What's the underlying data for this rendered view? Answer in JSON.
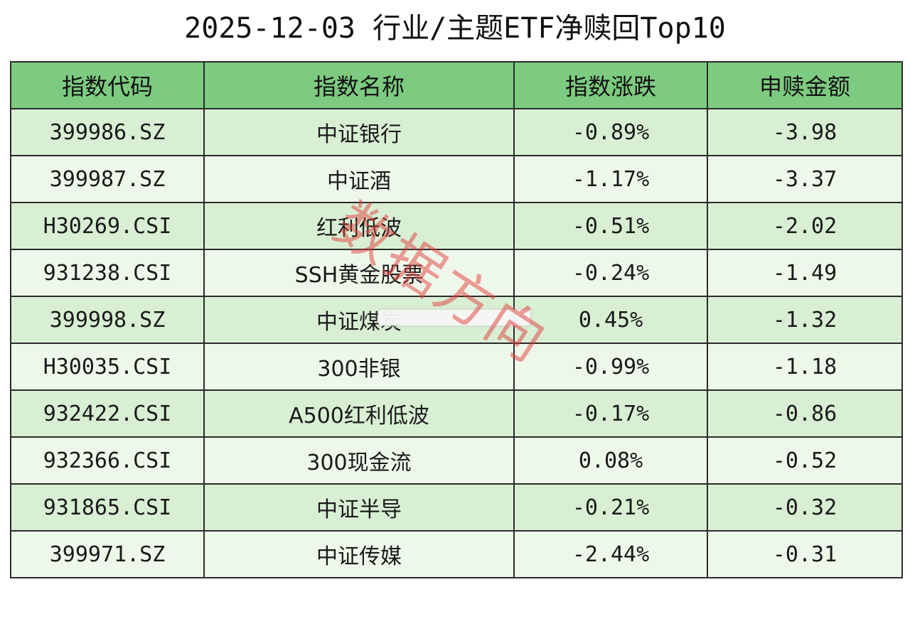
{
  "title": "2025-12-03 行业/主题ETF净赎回Top10",
  "headers": [
    "指数代码",
    "指数名称",
    "指数涨跌",
    "申赎金额"
  ],
  "rows": [
    {
      "code": "399986.SZ",
      "name": "中证银行",
      "change": "-0.89%",
      "amount": "-3.98"
    },
    {
      "code": "399987.SZ",
      "name": "中证酒",
      "change": "-1.17%",
      "amount": "-3.37"
    },
    {
      "code": "H30269.CSI",
      "name": "红利低波",
      "change": "-0.51%",
      "amount": "-2.02"
    },
    {
      "code": "931238.CSI",
      "name": "SSH黄金股票",
      "change": "-0.24%",
      "amount": "-1.49"
    },
    {
      "code": "399998.SZ",
      "name": "中证煤炭",
      "change": "0.45%",
      "amount": "-1.32"
    },
    {
      "code": "H30035.CSI",
      "name": "300非银",
      "change": "-0.99%",
      "amount": "-1.18"
    },
    {
      "code": "932422.CSI",
      "name": "A500红利低波",
      "change": "-0.17%",
      "amount": "-0.86"
    },
    {
      "code": "932366.CSI",
      "name": "300现金流",
      "change": "0.08%",
      "amount": "-0.52"
    },
    {
      "code": "931865.CSI",
      "name": "中证半导",
      "change": "-0.21%",
      "amount": "-0.32"
    },
    {
      "code": "399971.SZ",
      "name": "中证传媒",
      "change": "-2.44%",
      "amount": "-0.31"
    }
  ],
  "watermark": "数据方向",
  "colors": {
    "header_bg": "#7dcb80",
    "row_odd_bg": "#d9efd4",
    "row_even_bg": "#eef8ea",
    "watermark": "#e23c3c"
  }
}
